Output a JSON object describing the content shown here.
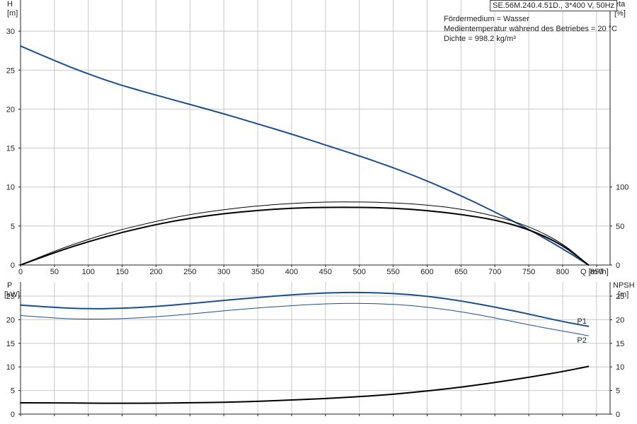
{
  "header": {
    "model": "SE.56M.240.4.51D., 3*400 V, 50Hz",
    "info_lines": [
      "Fördermedium = Wasser",
      "Medientemperatur während des Betriebes = 20 °C",
      "Dichte = 998.2 kg/m³"
    ]
  },
  "chart_data": [
    {
      "type": "line",
      "xlabel": "Q [m³/h]",
      "ylabel_left": "H",
      "ylabel_left_unit": "[m]",
      "ylabel_right": "eta",
      "ylabel_right_unit": "[%]",
      "xlim": [
        0,
        870
      ],
      "ylim_left": [
        0,
        34
      ],
      "ylim_right": [
        0,
        340
      ],
      "x_ticks": [
        0,
        50,
        100,
        150,
        200,
        250,
        300,
        350,
        400,
        450,
        500,
        550,
        600,
        650,
        700,
        750,
        800,
        850
      ],
      "y_ticks_left": [
        0,
        5,
        10,
        15,
        20,
        25,
        30
      ],
      "y_ticks_right": [
        0,
        50,
        100
      ],
      "grid": true,
      "series": [
        {
          "axis": "left",
          "color": "#1f4e8c",
          "width": 2,
          "x": [
            0,
            50,
            100,
            150,
            200,
            250,
            300,
            350,
            400,
            450,
            500,
            550,
            600,
            650,
            700,
            750,
            800,
            838
          ],
          "y": [
            28.1,
            26.2,
            24.5,
            23.0,
            21.8,
            20.6,
            19.4,
            18.1,
            16.8,
            15.4,
            14.0,
            12.5,
            10.8,
            8.9,
            6.8,
            4.6,
            2.1,
            0
          ]
        },
        {
          "axis": "right",
          "color": "#000000",
          "width": 1,
          "x": [
            0,
            50,
            100,
            150,
            200,
            250,
            300,
            350,
            400,
            450,
            500,
            550,
            600,
            650,
            700,
            750,
            800,
            838
          ],
          "y": [
            0,
            18,
            33,
            46,
            56,
            65,
            71,
            76,
            79,
            81,
            81,
            80,
            77,
            72,
            63,
            50,
            28,
            0
          ]
        },
        {
          "axis": "right",
          "color": "#000000",
          "width": 2,
          "x": [
            0,
            50,
            100,
            150,
            200,
            250,
            300,
            350,
            400,
            450,
            500,
            550,
            600,
            650,
            700,
            750,
            800,
            838
          ],
          "y": [
            0,
            16,
            30,
            42,
            52,
            60,
            66,
            70,
            73,
            74,
            74,
            73,
            70,
            65,
            58,
            46,
            26,
            0
          ]
        }
      ]
    },
    {
      "type": "line",
      "ylabel_left": "P",
      "ylabel_left_unit": "[kW]",
      "ylabel_right": "NPSH",
      "ylabel_right_unit": "[m]",
      "xlim": [
        0,
        870
      ],
      "ylim_left": [
        0,
        28
      ],
      "ylim_right": [
        0,
        28
      ],
      "y_ticks_left": [
        0,
        5,
        10,
        15,
        20,
        25
      ],
      "y_ticks_right": [
        0,
        5,
        10,
        15,
        20,
        25
      ],
      "grid": true,
      "series": [
        {
          "name": "P1",
          "axis": "left",
          "color": "#1f4e8c",
          "width": 2,
          "x": [
            0,
            50,
            100,
            150,
            200,
            250,
            300,
            350,
            400,
            450,
            500,
            550,
            600,
            650,
            700,
            750,
            800,
            838
          ],
          "y": [
            23.1,
            22.6,
            22.3,
            22.4,
            22.8,
            23.4,
            24.1,
            24.7,
            25.3,
            25.7,
            25.8,
            25.6,
            25.0,
            24.0,
            22.7,
            21.2,
            19.6,
            18.6
          ]
        },
        {
          "name": "P2",
          "axis": "left",
          "color": "#1f4e8c",
          "width": 1,
          "x": [
            0,
            50,
            100,
            150,
            200,
            250,
            300,
            350,
            400,
            450,
            500,
            550,
            600,
            650,
            700,
            750,
            800,
            838
          ],
          "y": [
            20.9,
            20.3,
            20.1,
            20.2,
            20.6,
            21.2,
            21.9,
            22.5,
            23.0,
            23.4,
            23.5,
            23.3,
            22.7,
            21.7,
            20.4,
            18.9,
            17.6,
            16.6
          ]
        },
        {
          "axis": "right",
          "color": "#000000",
          "width": 2,
          "x": [
            0,
            50,
            100,
            150,
            200,
            250,
            300,
            350,
            400,
            450,
            500,
            550,
            600,
            650,
            700,
            750,
            800,
            838
          ],
          "y": [
            2.4,
            2.4,
            2.3,
            2.3,
            2.3,
            2.4,
            2.5,
            2.7,
            3.0,
            3.3,
            3.7,
            4.2,
            4.9,
            5.7,
            6.7,
            7.8,
            9.0,
            10.1
          ]
        }
      ]
    }
  ]
}
